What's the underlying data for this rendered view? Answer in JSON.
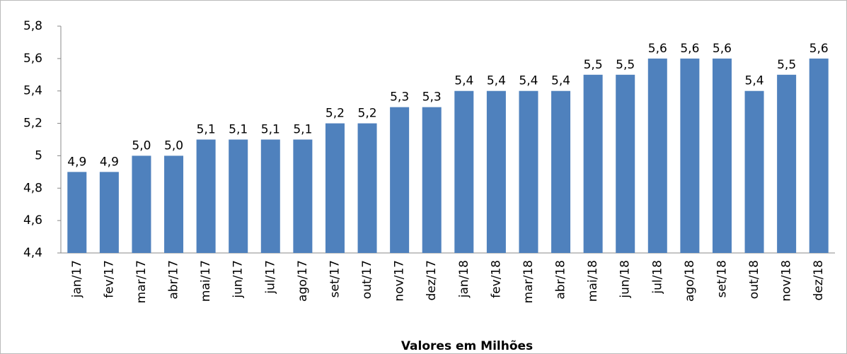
{
  "chart_data": {
    "type": "bar",
    "x_axis_label": "Valores em Milhões",
    "categories": [
      "jan/17",
      "fev/17",
      "mar/17",
      "abr/17",
      "mai/17",
      "jun/17",
      "jul/17",
      "ago/17",
      "set/17",
      "out/17",
      "nov/17",
      "dez/17",
      "jan/18",
      "fev/18",
      "mar/18",
      "abr/18",
      "mai/18",
      "jun/18",
      "jul/18",
      "ago/18",
      "set/18",
      "out/18",
      "nov/18",
      "dez/18"
    ],
    "values": [
      4.9,
      4.9,
      5.0,
      5.0,
      5.1,
      5.1,
      5.1,
      5.1,
      5.2,
      5.2,
      5.3,
      5.3,
      5.4,
      5.4,
      5.4,
      5.4,
      5.5,
      5.5,
      5.6,
      5.6,
      5.6,
      5.4,
      5.5,
      5.6
    ],
    "value_labels": [
      "4,9",
      "4,9",
      "5,0",
      "5,0",
      "5,1",
      "5,1",
      "5,1",
      "5,1",
      "5,2",
      "5,2",
      "5,3",
      "5,3",
      "5,4",
      "5,4",
      "5,4",
      "5,4",
      "5,5",
      "5,5",
      "5,6",
      "5,6",
      "5,6",
      "5,4",
      "5,5",
      "5,6"
    ],
    "color": "#4f81bd",
    "ylim": [
      4.4,
      5.8
    ],
    "yticks": [
      {
        "value": 4.4,
        "label": "4,4"
      },
      {
        "value": 4.6,
        "label": "4,6"
      },
      {
        "value": 4.8,
        "label": "4,8"
      },
      5,
      {
        "value": 5.2,
        "label": "5,2"
      },
      {
        "value": 5.4,
        "label": "5,4"
      },
      {
        "value": 5.6,
        "label": "5,6"
      },
      {
        "value": 5.8,
        "label": "5,8"
      }
    ],
    "grid": false
  }
}
